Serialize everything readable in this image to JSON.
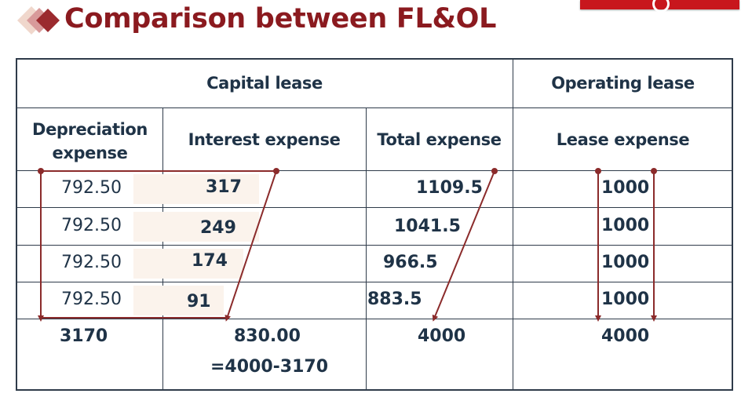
{
  "title": "Comparison between FL&OL",
  "headers": {
    "capital_lease": "Capital lease",
    "operating_lease": "Operating lease",
    "depreciation": "Depreciation expense",
    "interest": "Interest expense",
    "total": "Total expense",
    "lease_expense": "Lease expense"
  },
  "rows": [
    {
      "depreciation": "792.50",
      "interest": "317",
      "total": "1109.5",
      "lease": "1000"
    },
    {
      "depreciation": "792.50",
      "interest": "249",
      "total": "1041.5",
      "lease": "1000"
    },
    {
      "depreciation": "792.50",
      "interest": "174",
      "total": "966.5",
      "lease": "1000"
    },
    {
      "depreciation": "792.50",
      "interest": "91",
      "total": "883.5",
      "lease": "1000"
    }
  ],
  "totals": {
    "depreciation": "3170",
    "interest": "830.00",
    "interest_formula": "=4000-3170",
    "total": "4000",
    "lease": "4000"
  },
  "colors": {
    "title": "#8b1a1f",
    "grid": "#2f3b4a",
    "arrows": "#8b2b2b",
    "corner_bar": "#c8161d"
  }
}
